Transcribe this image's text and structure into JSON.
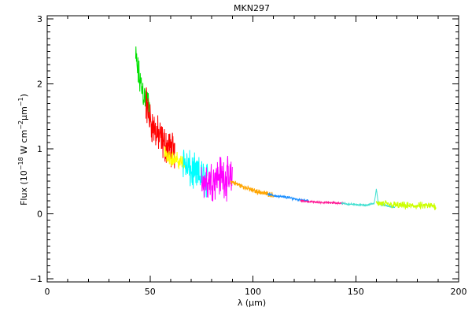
{
  "chart_data": {
    "type": "line",
    "title": "MKN297",
    "xlabel": "λ (μm)",
    "ylabel": "Flux (10",
    "ylabel_sup1": "−18",
    "ylabel_mid1": " W cm",
    "ylabel_sup2": "−2",
    "ylabel_mid2": "μm",
    "ylabel_sup3": "−1",
    "ylabel_end": ")",
    "xlim": [
      0,
      200
    ],
    "ylim": [
      -1.05,
      3.05
    ],
    "x_ticks": [
      0,
      50,
      100,
      150,
      200
    ],
    "y_ticks": [
      -1,
      0,
      1,
      2,
      3
    ],
    "x_tick_labels": [
      "0",
      "50",
      "100",
      "150",
      "200"
    ],
    "y_tick_labels": [
      "−1",
      "0",
      "1",
      "2",
      "3"
    ],
    "x_minor_step": 10,
    "y_minor_step": 0.1,
    "grid": false,
    "series": [
      {
        "color": "#00e000",
        "noise": 0.32,
        "x": [
          43,
          44,
          45,
          46,
          47,
          48,
          49,
          50
        ],
        "y": [
          2.4,
          2.2,
          2.05,
          1.95,
          1.85,
          1.75,
          1.7,
          1.6
        ]
      },
      {
        "color": "#ff0000",
        "noise": 0.35,
        "x": [
          48,
          50,
          52,
          54,
          56,
          58,
          60,
          62
        ],
        "y": [
          1.7,
          1.45,
          1.3,
          1.2,
          1.1,
          1.05,
          1.0,
          0.95
        ]
      },
      {
        "color": "#ffff00",
        "noise": 0.15,
        "x": [
          57,
          59,
          61,
          63,
          65,
          67
        ],
        "y": [
          0.95,
          0.9,
          0.85,
          0.82,
          0.8,
          0.78
        ]
      },
      {
        "color": "#00ffff",
        "noise": 0.35,
        "x": [
          66,
          68,
          70,
          72,
          74,
          76,
          78
        ],
        "y": [
          0.85,
          0.7,
          0.65,
          0.6,
          0.58,
          0.55,
          0.5
        ]
      },
      {
        "color": "#ff00ff",
        "noise": 0.38,
        "x": [
          75,
          78,
          81,
          84,
          87,
          90
        ],
        "y": [
          0.55,
          0.5,
          0.55,
          0.6,
          0.55,
          0.5
        ]
      },
      {
        "color": "#ffa500",
        "noise": 0.05,
        "x": [
          89,
          95,
          100,
          105,
          110
        ],
        "y": [
          0.5,
          0.42,
          0.36,
          0.32,
          0.29
        ]
      },
      {
        "color": "#1e90ff",
        "noise": 0.025,
        "x": [
          107,
          112,
          117,
          122,
          127
        ],
        "y": [
          0.3,
          0.27,
          0.25,
          0.22,
          0.2
        ]
      },
      {
        "color": "#ff1493",
        "noise": 0.018,
        "x": [
          123,
          130,
          137,
          145
        ],
        "y": [
          0.2,
          0.18,
          0.17,
          0.16
        ]
      },
      {
        "color": "#40e0d0",
        "noise": 0.018,
        "x": [
          143,
          150,
          155,
          159,
          160,
          161,
          165,
          169
        ],
        "y": [
          0.16,
          0.14,
          0.13,
          0.16,
          0.38,
          0.16,
          0.12,
          0.1
        ]
      },
      {
        "color": "#ccff00",
        "noise": 0.07,
        "x": [
          160,
          165,
          170,
          175,
          180,
          185,
          189
        ],
        "y": [
          0.16,
          0.15,
          0.13,
          0.12,
          0.12,
          0.12,
          0.12
        ]
      }
    ]
  }
}
